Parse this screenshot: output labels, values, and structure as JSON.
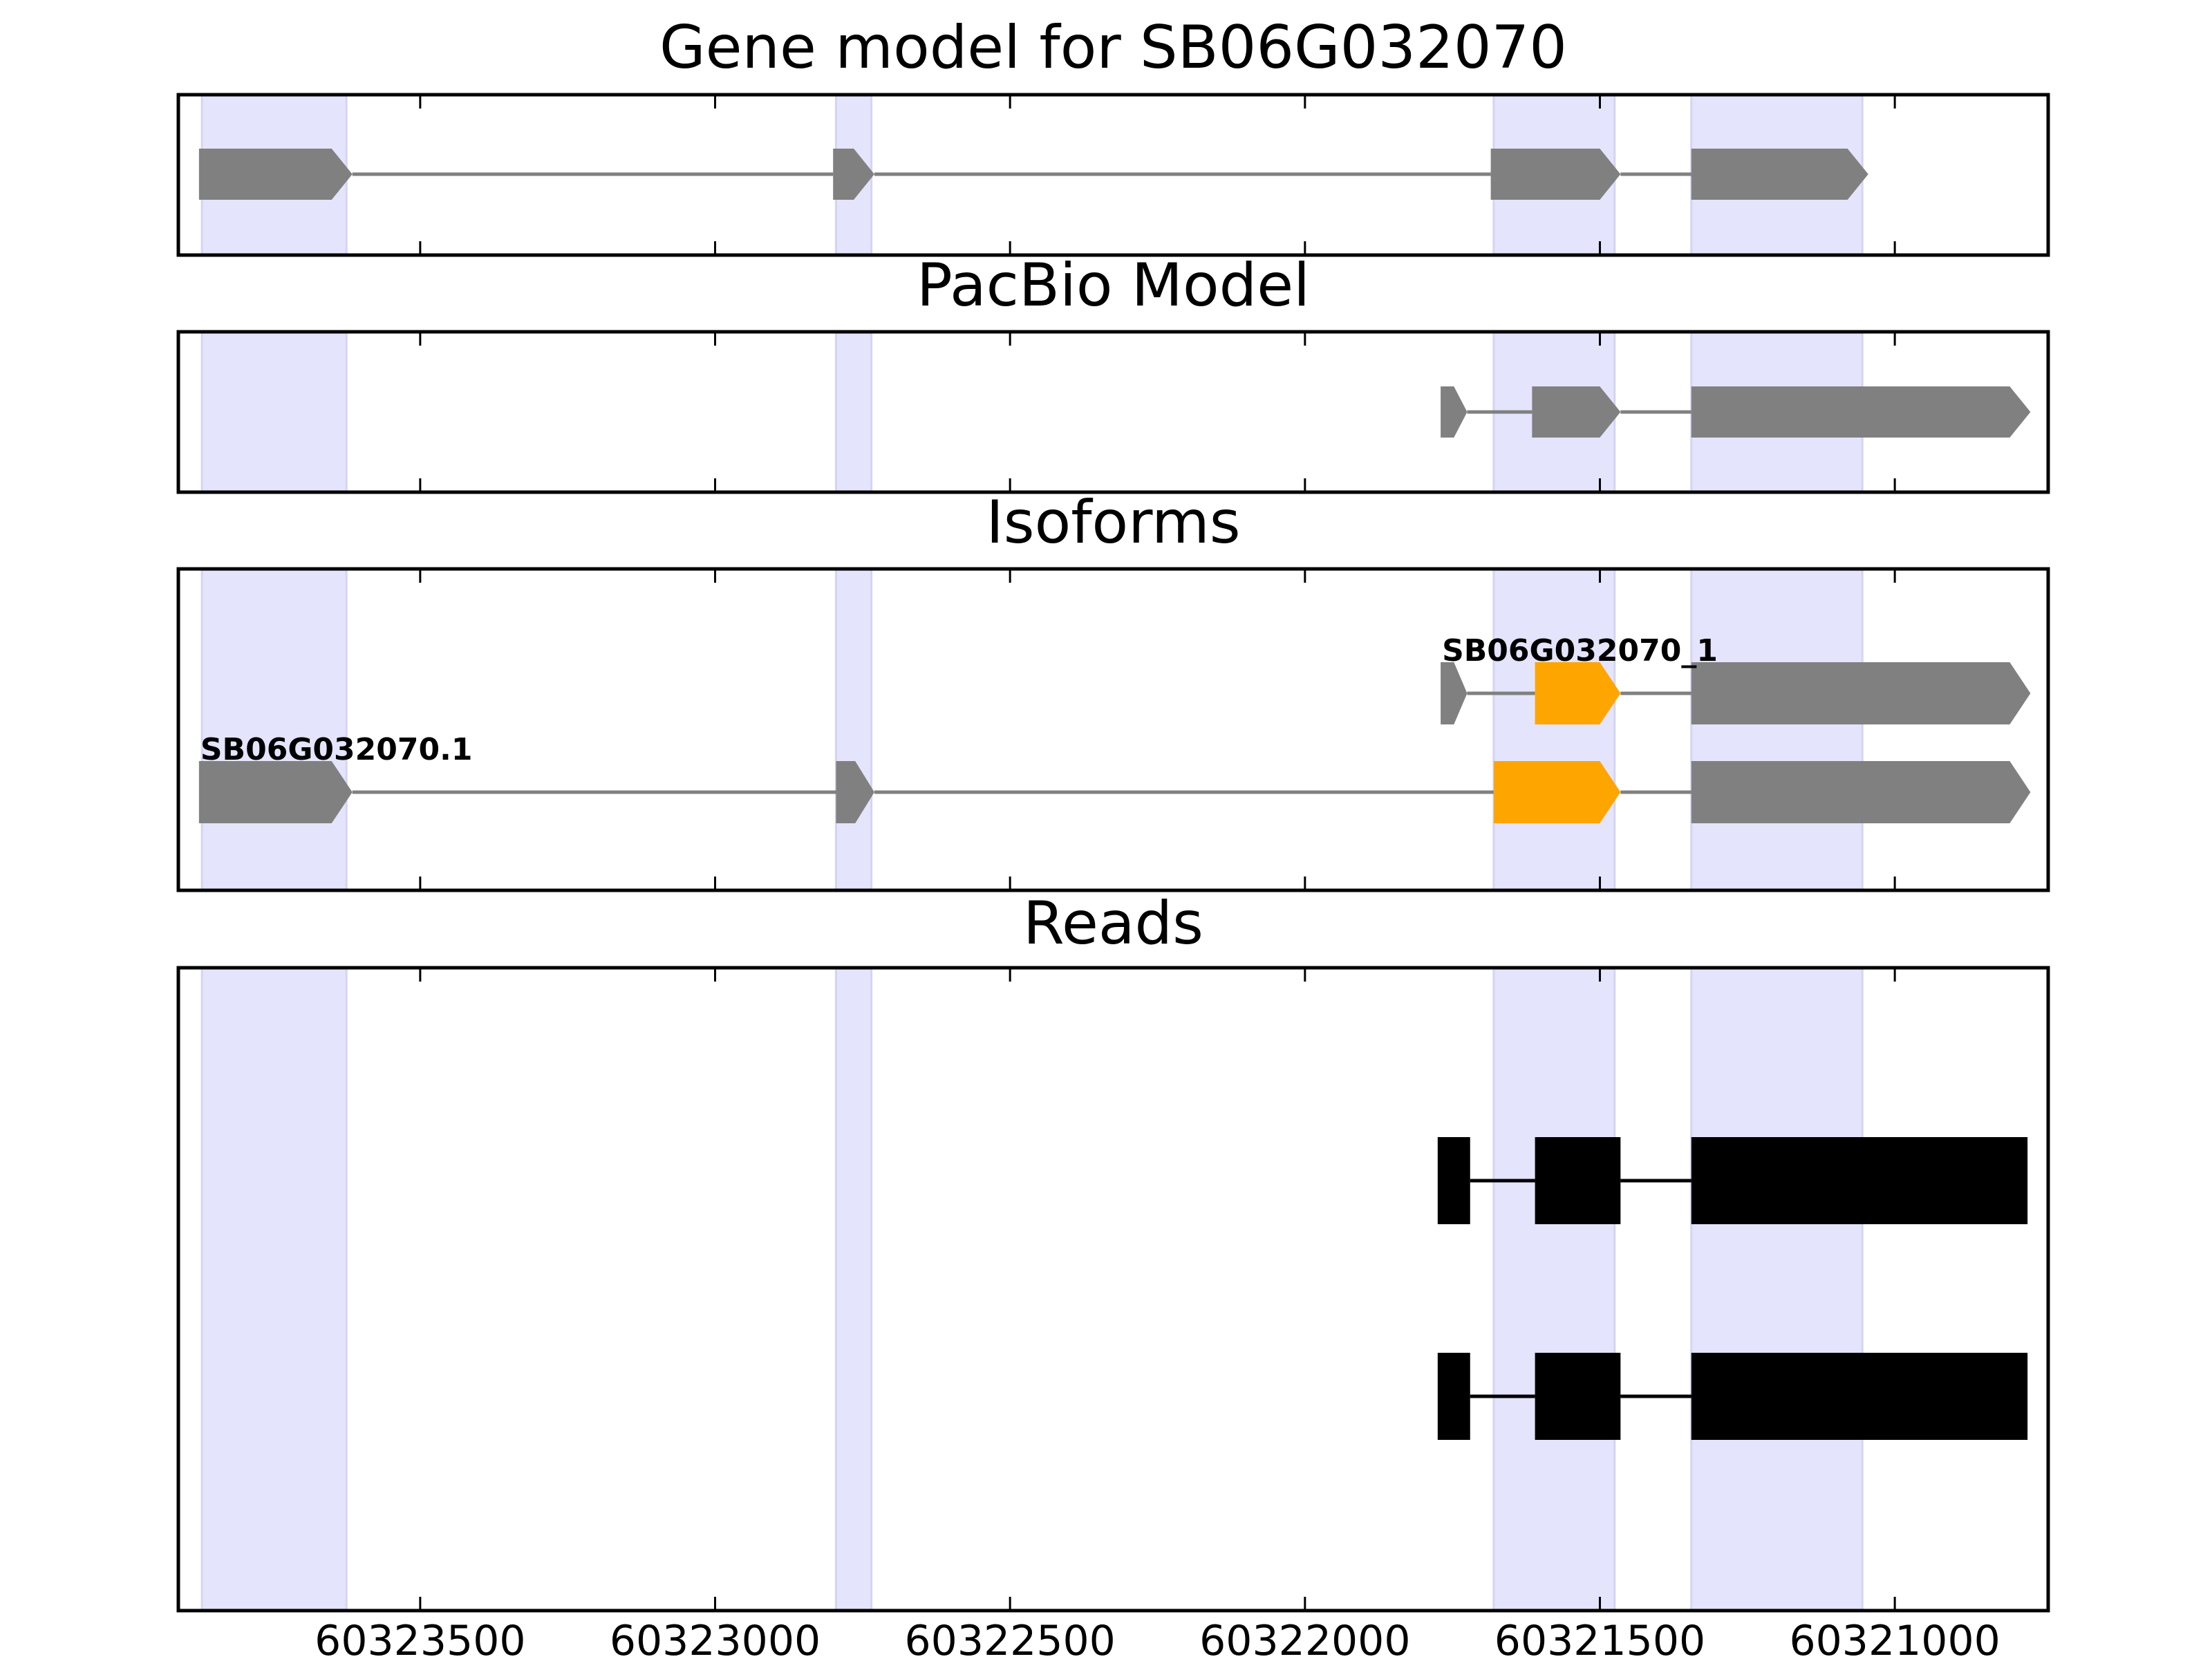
{
  "figure_title": "Gene model for SB06G032070",
  "colors": {
    "exon_band": "#e4e4fc",
    "gene_feature": "#808080",
    "highlight_feature": "#ffa500",
    "read_feature": "#000000",
    "frame": "#000000"
  },
  "chart_data": {
    "type": "gene-track",
    "x_axis": {
      "reversed": true,
      "xlim": [
        60323910,
        60320740
      ],
      "ticks": [
        60323500,
        60323000,
        60322500,
        60322000,
        60321500,
        60321000
      ],
      "tick_labels": [
        "60323500",
        "60323000",
        "60322500",
        "60322000",
        "60321500",
        "60321000"
      ]
    },
    "exon_bands": [
      [
        60323870,
        60323625
      ],
      [
        60322795,
        60322735
      ],
      [
        60321680,
        60321475
      ],
      [
        60321345,
        60321055
      ]
    ],
    "panels": [
      {
        "title": "Gene model for SB06G032070",
        "rows": [
          {
            "label": "",
            "exons": [
              {
                "start": 60323875,
                "end": 60323615,
                "color": "gene",
                "arrow": true
              },
              {
                "start": 60322800,
                "end": 60322730,
                "color": "gene",
                "arrow": true
              },
              {
                "start": 60321685,
                "end": 60321465,
                "color": "gene",
                "arrow": true
              },
              {
                "start": 60321345,
                "end": 60321045,
                "color": "gene",
                "arrow": true
              }
            ]
          }
        ]
      },
      {
        "title": "PacBio Model",
        "rows": [
          {
            "label": "",
            "exons": [
              {
                "start": 60321770,
                "end": 60321725,
                "color": "gene",
                "arrow": true
              },
              {
                "start": 60321615,
                "end": 60321465,
                "color": "gene",
                "arrow": true
              },
              {
                "start": 60321345,
                "end": 60320770,
                "color": "gene",
                "arrow": true
              }
            ]
          }
        ]
      },
      {
        "title": "Isoforms",
        "rows": [
          {
            "label": "SB06G032070_1",
            "exons": [
              {
                "start": 60321770,
                "end": 60321725,
                "color": "gene",
                "arrow": true
              },
              {
                "start": 60321610,
                "end": 60321465,
                "color": "highlight",
                "arrow": true
              },
              {
                "start": 60321345,
                "end": 60320770,
                "color": "gene",
                "arrow": true
              }
            ]
          },
          {
            "label": "SB06G032070.1",
            "exons": [
              {
                "start": 60323875,
                "end": 60323615,
                "color": "gene",
                "arrow": true
              },
              {
                "start": 60322795,
                "end": 60322730,
                "color": "gene",
                "arrow": true
              },
              {
                "start": 60321680,
                "end": 60321465,
                "color": "highlight",
                "arrow": true
              },
              {
                "start": 60321345,
                "end": 60320770,
                "color": "gene",
                "arrow": true
              }
            ]
          }
        ]
      },
      {
        "title": "Reads",
        "rows": [
          {
            "label": "",
            "exons": [
              {
                "start": 60321775,
                "end": 60321720,
                "color": "read",
                "arrow": false
              },
              {
                "start": 60321610,
                "end": 60321465,
                "color": "read",
                "arrow": false
              },
              {
                "start": 60321345,
                "end": 60320775,
                "color": "read",
                "arrow": false
              }
            ]
          },
          {
            "label": "",
            "exons": [
              {
                "start": 60321775,
                "end": 60321720,
                "color": "read",
                "arrow": false
              },
              {
                "start": 60321610,
                "end": 60321465,
                "color": "read",
                "arrow": false
              },
              {
                "start": 60321345,
                "end": 60320775,
                "color": "read",
                "arrow": false
              }
            ]
          }
        ]
      }
    ]
  }
}
